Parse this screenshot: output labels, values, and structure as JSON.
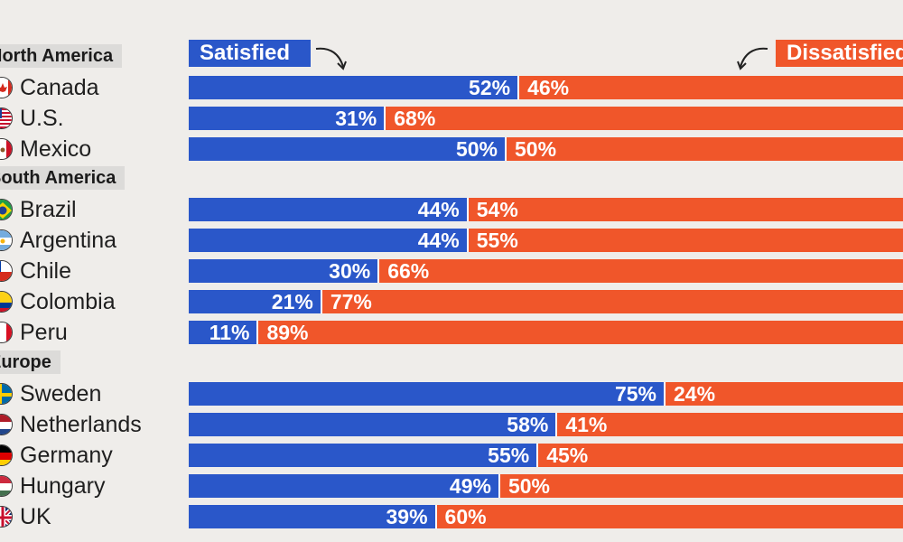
{
  "chart_data": {
    "type": "bar",
    "orientation": "horizontal-stacked",
    "legend": [
      {
        "name": "Satisfied",
        "color": "#2a57c9"
      },
      {
        "name": "Dissatisfied",
        "color": "#f0562a"
      }
    ],
    "groups": [
      {
        "region": "North America",
        "countries": [
          {
            "name": "Canada",
            "satisfied": 52,
            "dissatisfied": 46,
            "sat_label": "52%",
            "dis_label": "46%",
            "flag": "canada-flag-icon"
          },
          {
            "name": "U.S.",
            "satisfied": 31,
            "dissatisfied": 68,
            "sat_label": "31%",
            "dis_label": "68%",
            "flag": "us-flag-icon"
          },
          {
            "name": "Mexico",
            "satisfied": 50,
            "dissatisfied": 50,
            "sat_label": "50%",
            "dis_label": "50%",
            "flag": "mexico-flag-icon"
          }
        ]
      },
      {
        "region": "South America",
        "countries": [
          {
            "name": "Brazil",
            "satisfied": 44,
            "dissatisfied": 54,
            "sat_label": "44%",
            "dis_label": "54%",
            "flag": "brazil-flag-icon"
          },
          {
            "name": "Argentina",
            "satisfied": 44,
            "dissatisfied": 55,
            "sat_label": "44%",
            "dis_label": "55%",
            "flag": "argentina-flag-icon"
          },
          {
            "name": "Chile",
            "satisfied": 30,
            "dissatisfied": 66,
            "sat_label": "30%",
            "dis_label": "66%",
            "flag": "chile-flag-icon"
          },
          {
            "name": "Colombia",
            "satisfied": 21,
            "dissatisfied": 77,
            "sat_label": "21%",
            "dis_label": "77%",
            "flag": "colombia-flag-icon"
          },
          {
            "name": "Peru",
            "satisfied": 11,
            "dissatisfied": 89,
            "sat_label": "11%",
            "dis_label": "89%",
            "flag": "peru-flag-icon"
          }
        ]
      },
      {
        "region": "Europe",
        "countries": [
          {
            "name": "Sweden",
            "satisfied": 75,
            "dissatisfied": 24,
            "sat_label": "75%",
            "dis_label": "24%",
            "flag": "sweden-flag-icon"
          },
          {
            "name": "Netherlands",
            "satisfied": 58,
            "dissatisfied": 41,
            "sat_label": "58%",
            "dis_label": "41%",
            "flag": "netherlands-flag-icon"
          },
          {
            "name": "Germany",
            "satisfied": 55,
            "dissatisfied": 45,
            "sat_label": "55%",
            "dis_label": "45%",
            "flag": "germany-flag-icon"
          },
          {
            "name": "Hungary",
            "satisfied": 49,
            "dissatisfied": 50,
            "sat_label": "49%",
            "dis_label": "50%",
            "flag": "hungary-flag-icon"
          },
          {
            "name": "UK",
            "satisfied": 39,
            "dissatisfied": 60,
            "sat_label": "39%",
            "dis_label": "60%",
            "flag": "uk-flag-icon"
          }
        ]
      }
    ],
    "xlim": [
      0,
      100
    ]
  }
}
